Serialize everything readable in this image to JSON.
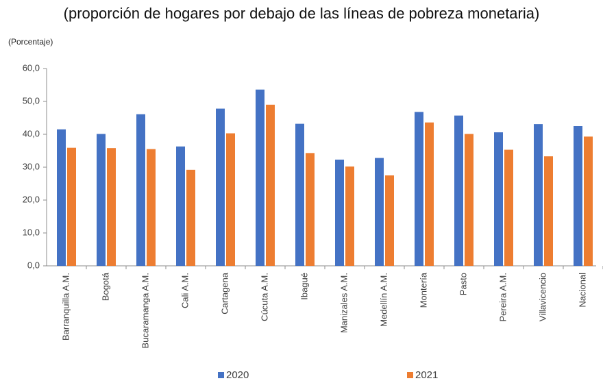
{
  "chart_data": {
    "type": "bar",
    "title": "(proporción de hogares por debajo de las líneas de pobreza monetaria)",
    "y_label": "(Porcentaje)",
    "categories": [
      "Barranquilla A.M.",
      "Bogotá",
      "Bucaramanga A.M.",
      "Cali A.M.",
      "Cartagena",
      "Cúcuta A.M.",
      "Ibagué",
      "Manizales A.M.",
      "Medellín A.M.",
      "Montería",
      "Pasto",
      "Pereira A.M.",
      "Villavicencio",
      "Nacional"
    ],
    "series": [
      {
        "name": "2020",
        "color": "#4472c4",
        "values": [
          41.5,
          40.1,
          46.1,
          36.3,
          47.8,
          53.6,
          43.2,
          32.3,
          32.8,
          46.8,
          45.7,
          40.6,
          43.1,
          42.5
        ]
      },
      {
        "name": "2021",
        "color": "#ed7d31",
        "values": [
          35.9,
          35.8,
          35.5,
          29.2,
          40.3,
          49.0,
          34.3,
          30.2,
          27.5,
          43.6,
          40.1,
          35.3,
          33.3,
          39.3
        ]
      }
    ],
    "ylim": [
      0,
      60
    ],
    "yticks": [
      {
        "value": 0,
        "label": "0,0"
      },
      {
        "value": 10,
        "label": "10,0"
      },
      {
        "value": 20,
        "label": "20,0"
      },
      {
        "value": 30,
        "label": "30,0"
      },
      {
        "value": 40,
        "label": "40,0"
      },
      {
        "value": 50,
        "label": "50,0"
      },
      {
        "value": 60,
        "label": "60,0"
      }
    ],
    "grid": false,
    "legend": "bottom"
  }
}
